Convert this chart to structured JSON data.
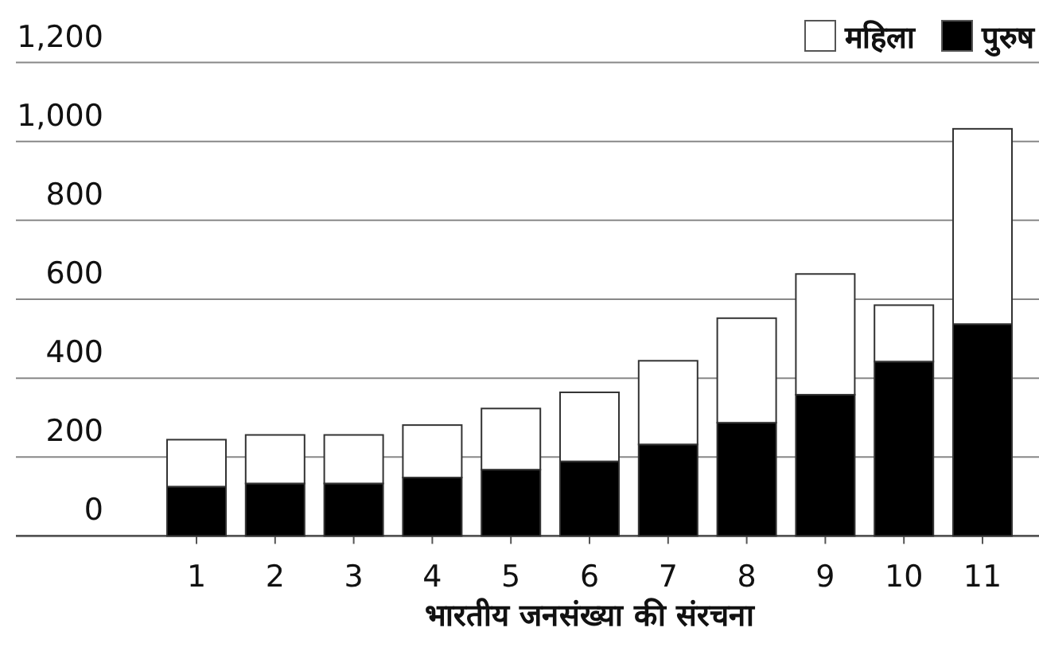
{
  "chart_data": {
    "type": "bar",
    "stacked": true,
    "xlabel": "भारतीय जनसंख्या की संरचना",
    "categories": [
      "1",
      "2",
      "3",
      "4",
      "5",
      "6",
      "7",
      "8",
      "9",
      "10",
      "11"
    ],
    "series": [
      {
        "name": "पुरुष",
        "color": "#000000",
        "values": [
          125,
          133,
          133,
          148,
          168,
          189,
          232,
          287,
          358,
          442,
          537
        ]
      },
      {
        "name": "महिला",
        "color": "#ffffff",
        "values": [
          119,
          123,
          123,
          133,
          155,
          175,
          212,
          265,
          306,
          143,
          495
        ]
      }
    ],
    "ylim": [
      0,
      1200
    ],
    "yticks": [
      0,
      200,
      400,
      600,
      800,
      {
        "value": 1000,
        "label": "1,000"
      },
      {
        "value": 1200,
        "label": "1,200"
      }
    ],
    "grid": "y",
    "legend": "top right"
  }
}
